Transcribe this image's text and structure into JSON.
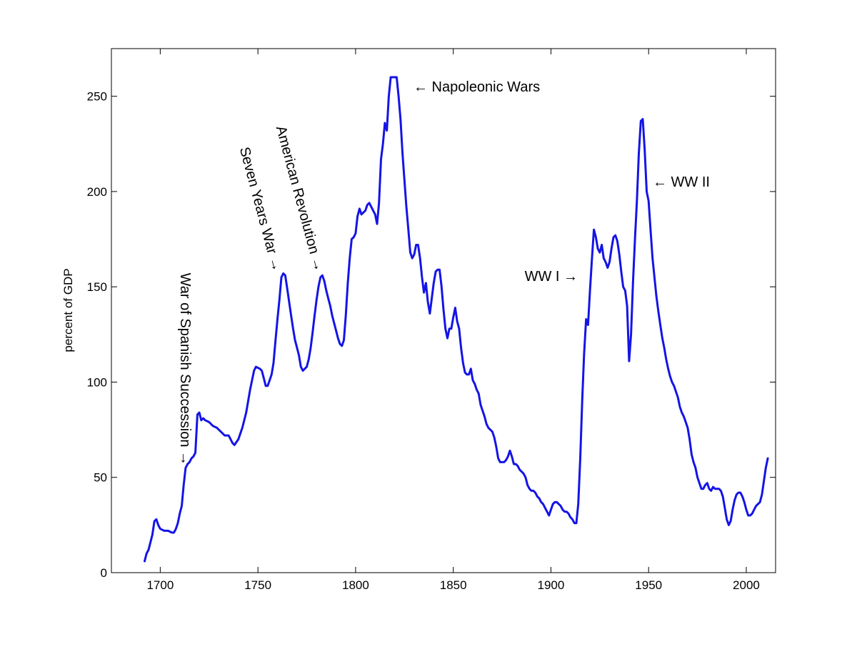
{
  "colors": {
    "line": "#1414e6",
    "axes": "#000000",
    "background": "#ffffff"
  },
  "chart_data": {
    "type": "line",
    "title": "",
    "xlabel": "",
    "ylabel": "percent of GDP",
    "xlim": [
      1675,
      2015
    ],
    "ylim": [
      0,
      275
    ],
    "grid": false,
    "x_ticks": [
      1700,
      1750,
      1800,
      1850,
      1900,
      1950,
      2000
    ],
    "y_ticks": [
      0,
      50,
      100,
      150,
      200,
      250
    ],
    "series": [
      {
        "name": "",
        "points": [
          [
            1692,
            6
          ],
          [
            1693,
            10
          ],
          [
            1694,
            12
          ],
          [
            1695,
            16
          ],
          [
            1696,
            20
          ],
          [
            1697,
            27
          ],
          [
            1698,
            28
          ],
          [
            1699,
            25
          ],
          [
            1700,
            23
          ],
          [
            1702,
            22
          ],
          [
            1704,
            22
          ],
          [
            1706,
            21
          ],
          [
            1707,
            21
          ],
          [
            1708,
            23
          ],
          [
            1709,
            26
          ],
          [
            1710,
            31
          ],
          [
            1711,
            35
          ],
          [
            1712,
            46
          ],
          [
            1713,
            55
          ],
          [
            1714,
            57
          ],
          [
            1715,
            58
          ],
          [
            1716,
            60
          ],
          [
            1717,
            61
          ],
          [
            1718,
            63
          ],
          [
            1719,
            83
          ],
          [
            1720,
            84
          ],
          [
            1721,
            80
          ],
          [
            1722,
            81
          ],
          [
            1723,
            80
          ],
          [
            1725,
            79
          ],
          [
            1727,
            77
          ],
          [
            1729,
            76
          ],
          [
            1731,
            74
          ],
          [
            1733,
            72
          ],
          [
            1735,
            72
          ],
          [
            1736,
            70
          ],
          [
            1737,
            68
          ],
          [
            1738,
            67
          ],
          [
            1740,
            70
          ],
          [
            1742,
            76
          ],
          [
            1744,
            84
          ],
          [
            1746,
            96
          ],
          [
            1748,
            106
          ],
          [
            1749,
            108
          ],
          [
            1751,
            107
          ],
          [
            1752,
            106
          ],
          [
            1753,
            102
          ],
          [
            1754,
            98
          ],
          [
            1755,
            98
          ],
          [
            1756,
            101
          ],
          [
            1757,
            104
          ],
          [
            1758,
            110
          ],
          [
            1759,
            122
          ],
          [
            1760,
            133
          ],
          [
            1761,
            143
          ],
          [
            1762,
            155
          ],
          [
            1763,
            157
          ],
          [
            1764,
            156
          ],
          [
            1765,
            149
          ],
          [
            1766,
            142
          ],
          [
            1767,
            135
          ],
          [
            1768,
            128
          ],
          [
            1769,
            122
          ],
          [
            1770,
            118
          ],
          [
            1771,
            114
          ],
          [
            1772,
            108
          ],
          [
            1773,
            106
          ],
          [
            1774,
            107
          ],
          [
            1775,
            108
          ],
          [
            1776,
            112
          ],
          [
            1777,
            118
          ],
          [
            1778,
            126
          ],
          [
            1779,
            135
          ],
          [
            1780,
            143
          ],
          [
            1781,
            150
          ],
          [
            1782,
            155
          ],
          [
            1783,
            156
          ],
          [
            1784,
            153
          ],
          [
            1785,
            148
          ],
          [
            1786,
            144
          ],
          [
            1787,
            140
          ],
          [
            1788,
            135
          ],
          [
            1789,
            131
          ],
          [
            1790,
            127
          ],
          [
            1791,
            123
          ],
          [
            1792,
            120
          ],
          [
            1793,
            119
          ],
          [
            1794,
            122
          ],
          [
            1795,
            135
          ],
          [
            1796,
            152
          ],
          [
            1797,
            165
          ],
          [
            1798,
            175
          ],
          [
            1799,
            176
          ],
          [
            1800,
            178
          ],
          [
            1801,
            187
          ],
          [
            1802,
            191
          ],
          [
            1803,
            188
          ],
          [
            1804,
            189
          ],
          [
            1805,
            190
          ],
          [
            1806,
            193
          ],
          [
            1807,
            194
          ],
          [
            1808,
            192
          ],
          [
            1809,
            190
          ],
          [
            1810,
            188
          ],
          [
            1811,
            183
          ],
          [
            1812,
            194
          ],
          [
            1813,
            217
          ],
          [
            1814,
            225
          ],
          [
            1815,
            236
          ],
          [
            1816,
            232
          ],
          [
            1817,
            250
          ],
          [
            1818,
            260
          ],
          [
            1819,
            260
          ],
          [
            1820,
            260
          ],
          [
            1821,
            260
          ],
          [
            1822,
            250
          ],
          [
            1823,
            238
          ],
          [
            1824,
            220
          ],
          [
            1825,
            206
          ],
          [
            1826,
            192
          ],
          [
            1827,
            180
          ],
          [
            1828,
            168
          ],
          [
            1829,
            165
          ],
          [
            1830,
            167
          ],
          [
            1831,
            172
          ],
          [
            1832,
            172
          ],
          [
            1833,
            165
          ],
          [
            1834,
            155
          ],
          [
            1835,
            147
          ],
          [
            1836,
            152
          ],
          [
            1837,
            142
          ],
          [
            1838,
            136
          ],
          [
            1839,
            144
          ],
          [
            1840,
            152
          ],
          [
            1841,
            158
          ],
          [
            1842,
            159
          ],
          [
            1843,
            159
          ],
          [
            1844,
            150
          ],
          [
            1845,
            138
          ],
          [
            1846,
            128
          ],
          [
            1847,
            123
          ],
          [
            1848,
            128
          ],
          [
            1849,
            128
          ],
          [
            1850,
            134
          ],
          [
            1851,
            139
          ],
          [
            1852,
            132
          ],
          [
            1853,
            128
          ],
          [
            1854,
            118
          ],
          [
            1855,
            110
          ],
          [
            1856,
            105
          ],
          [
            1857,
            104
          ],
          [
            1858,
            104
          ],
          [
            1859,
            107
          ],
          [
            1860,
            101
          ],
          [
            1861,
            99
          ],
          [
            1862,
            96
          ],
          [
            1863,
            94
          ],
          [
            1864,
            88
          ],
          [
            1865,
            85
          ],
          [
            1866,
            82
          ],
          [
            1867,
            78
          ],
          [
            1868,
            76
          ],
          [
            1870,
            74
          ],
          [
            1871,
            71
          ],
          [
            1872,
            66
          ],
          [
            1873,
            60
          ],
          [
            1874,
            58
          ],
          [
            1876,
            58
          ],
          [
            1877,
            59
          ],
          [
            1878,
            61
          ],
          [
            1879,
            64
          ],
          [
            1880,
            61
          ],
          [
            1881,
            57
          ],
          [
            1882,
            57
          ],
          [
            1883,
            56
          ],
          [
            1884,
            54
          ],
          [
            1885,
            53
          ],
          [
            1886,
            52
          ],
          [
            1887,
            50
          ],
          [
            1888,
            46
          ],
          [
            1889,
            44
          ],
          [
            1890,
            43
          ],
          [
            1891,
            43
          ],
          [
            1892,
            42
          ],
          [
            1893,
            40
          ],
          [
            1894,
            39
          ],
          [
            1895,
            37
          ],
          [
            1896,
            36
          ],
          [
            1897,
            34
          ],
          [
            1898,
            32
          ],
          [
            1899,
            30
          ],
          [
            1900,
            33
          ],
          [
            1901,
            36
          ],
          [
            1902,
            37
          ],
          [
            1903,
            37
          ],
          [
            1904,
            36
          ],
          [
            1905,
            35
          ],
          [
            1906,
            33
          ],
          [
            1907,
            32
          ],
          [
            1908,
            32
          ],
          [
            1909,
            31
          ],
          [
            1910,
            29
          ],
          [
            1911,
            28
          ],
          [
            1912,
            26
          ],
          [
            1913,
            26
          ],
          [
            1914,
            36
          ],
          [
            1915,
            60
          ],
          [
            1916,
            90
          ],
          [
            1917,
            115
          ],
          [
            1918,
            133
          ],
          [
            1919,
            130
          ],
          [
            1920,
            148
          ],
          [
            1921,
            165
          ],
          [
            1922,
            180
          ],
          [
            1923,
            176
          ],
          [
            1924,
            170
          ],
          [
            1925,
            168
          ],
          [
            1926,
            172
          ],
          [
            1927,
            165
          ],
          [
            1928,
            163
          ],
          [
            1929,
            160
          ],
          [
            1930,
            163
          ],
          [
            1931,
            170
          ],
          [
            1932,
            176
          ],
          [
            1933,
            177
          ],
          [
            1934,
            174
          ],
          [
            1935,
            167
          ],
          [
            1936,
            158
          ],
          [
            1937,
            150
          ],
          [
            1938,
            148
          ],
          [
            1939,
            140
          ],
          [
            1940,
            111
          ],
          [
            1941,
            125
          ],
          [
            1942,
            152
          ],
          [
            1943,
            175
          ],
          [
            1944,
            195
          ],
          [
            1945,
            220
          ],
          [
            1946,
            237
          ],
          [
            1947,
            238
          ],
          [
            1948,
            222
          ],
          [
            1949,
            200
          ],
          [
            1950,
            195
          ],
          [
            1951,
            180
          ],
          [
            1952,
            165
          ],
          [
            1953,
            155
          ],
          [
            1954,
            145
          ],
          [
            1955,
            137
          ],
          [
            1956,
            130
          ],
          [
            1957,
            123
          ],
          [
            1958,
            118
          ],
          [
            1959,
            112
          ],
          [
            1960,
            107
          ],
          [
            1961,
            103
          ],
          [
            1962,
            100
          ],
          [
            1963,
            98
          ],
          [
            1964,
            95
          ],
          [
            1965,
            92
          ],
          [
            1966,
            87
          ],
          [
            1967,
            84
          ],
          [
            1968,
            82
          ],
          [
            1969,
            79
          ],
          [
            1970,
            76
          ],
          [
            1971,
            70
          ],
          [
            1972,
            62
          ],
          [
            1973,
            58
          ],
          [
            1974,
            55
          ],
          [
            1975,
            50
          ],
          [
            1976,
            47
          ],
          [
            1977,
            44
          ],
          [
            1978,
            44
          ],
          [
            1979,
            46
          ],
          [
            1980,
            47
          ],
          [
            1981,
            44
          ],
          [
            1982,
            43
          ],
          [
            1983,
            45
          ],
          [
            1984,
            44
          ],
          [
            1985,
            44
          ],
          [
            1986,
            44
          ],
          [
            1987,
            43
          ],
          [
            1988,
            40
          ],
          [
            1989,
            34
          ],
          [
            1990,
            28
          ],
          [
            1991,
            25
          ],
          [
            1992,
            27
          ],
          [
            1993,
            33
          ],
          [
            1994,
            38
          ],
          [
            1995,
            41
          ],
          [
            1996,
            42
          ],
          [
            1997,
            42
          ],
          [
            1998,
            40
          ],
          [
            1999,
            37
          ],
          [
            2000,
            33
          ],
          [
            2001,
            30
          ],
          [
            2002,
            30
          ],
          [
            2003,
            31
          ],
          [
            2004,
            33
          ],
          [
            2005,
            35
          ],
          [
            2006,
            36
          ],
          [
            2007,
            37
          ],
          [
            2008,
            41
          ],
          [
            2009,
            48
          ],
          [
            2010,
            55
          ],
          [
            2011,
            60
          ]
        ]
      }
    ],
    "annotations": [
      {
        "text": "War of Spanish Succession →",
        "x": 1713,
        "y": 55
      },
      {
        "text": "Seven Years War →",
        "x": 1762,
        "y": 157
      },
      {
        "text": "American Revolution →",
        "x": 1783,
        "y": 156
      },
      {
        "text": "← Napoleonic Wars",
        "x": 1822,
        "y": 255
      },
      {
        "text": "WW I →",
        "x": 1913,
        "y": 155
      },
      {
        "text": "← WW II",
        "x": 1949,
        "y": 205
      }
    ]
  }
}
